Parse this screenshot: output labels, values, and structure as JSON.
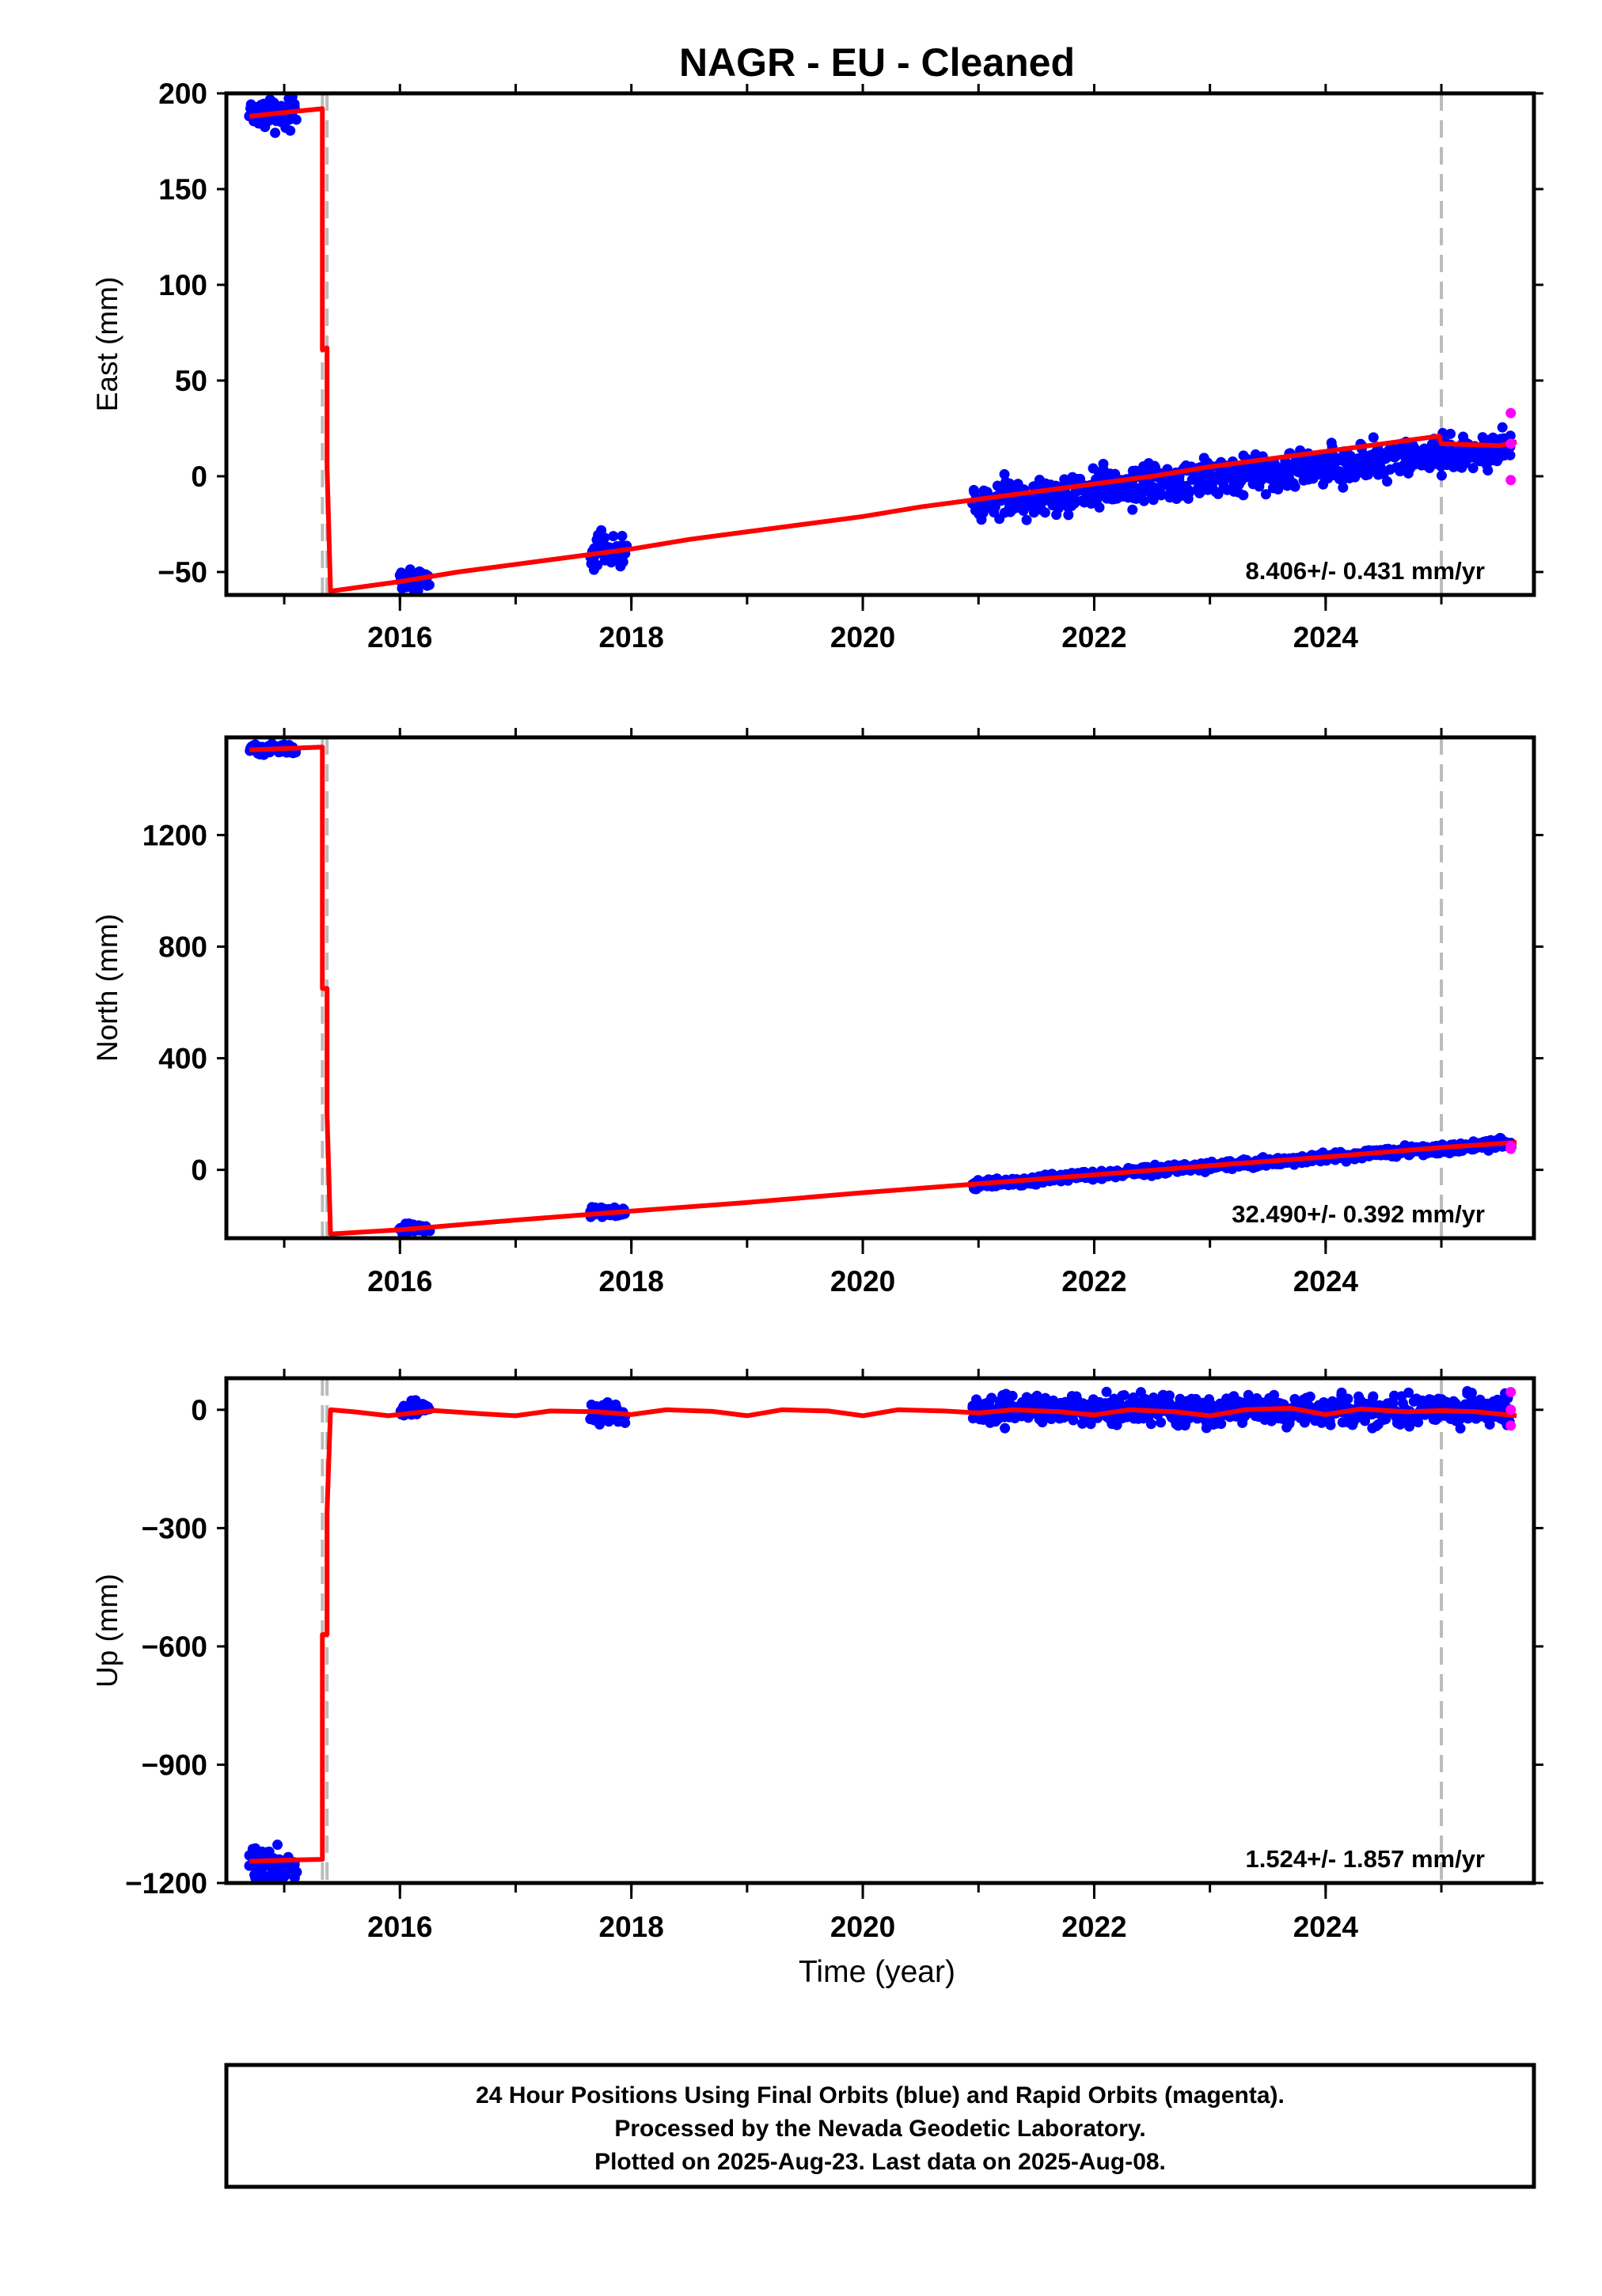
{
  "figure": {
    "title": "NAGR  - EU - Cleaned",
    "xlabel": "Time (year)",
    "footer_lines": [
      "24 Hour Positions Using Final Orbits (blue) and Rapid Orbits (magenta).",
      "Processed by the Nevada Geodetic Laboratory.",
      "Plotted on 2025-Aug-23. Last data on 2025-Aug-08."
    ]
  },
  "colors": {
    "final_orbits": "#0000ff",
    "rapid_orbits": "#ff00ff",
    "model": "#ff0000",
    "event_lines": "#bbbbbb"
  },
  "chart_data": [
    {
      "type": "scatter",
      "component": "east",
      "ylabel": "East (mm)",
      "xlim": [
        2014.5,
        2025.8
      ],
      "ylim": [
        -62,
        200
      ],
      "xticks": [
        2016,
        2018,
        2020,
        2022,
        2024
      ],
      "yticks": [
        -50,
        0,
        50,
        100,
        150,
        200
      ],
      "rate_label": "8.406+/- 0.431 mm/yr",
      "event_lines": [
        2015.33,
        2015.37,
        2025.0
      ],
      "model": [
        [
          2014.7,
          188
        ],
        [
          2015.0,
          190
        ],
        [
          2015.33,
          192
        ],
        [
          2015.33,
          66
        ],
        [
          2015.37,
          67
        ],
        [
          2015.37,
          5
        ],
        [
          2015.4,
          -60
        ],
        [
          2016.0,
          -55
        ],
        [
          2016.5,
          -50
        ],
        [
          2017.0,
          -46
        ],
        [
          2017.5,
          -42
        ],
        [
          2018.0,
          -38
        ],
        [
          2018.5,
          -33
        ],
        [
          2019.0,
          -29
        ],
        [
          2019.5,
          -25
        ],
        [
          2020.0,
          -21
        ],
        [
          2020.5,
          -16
        ],
        [
          2021.0,
          -12
        ],
        [
          2021.5,
          -8
        ],
        [
          2022.0,
          -4
        ],
        [
          2022.5,
          0
        ],
        [
          2023.0,
          5
        ],
        [
          2023.5,
          9
        ],
        [
          2024.0,
          13
        ],
        [
          2024.5,
          17
        ],
        [
          2024.98,
          21
        ],
        [
          2025.0,
          17
        ],
        [
          2025.5,
          16
        ],
        [
          2025.65,
          18
        ]
      ],
      "final_clusters": [
        {
          "x": [
            2014.7,
            2015.1
          ],
          "y_center": 190,
          "spread": 4
        },
        {
          "x": [
            2016.0,
            2016.25
          ],
          "y_center": -54,
          "spread": 3
        },
        {
          "x": [
            2017.65,
            2017.95
          ],
          "y_center": -39,
          "spread": 4
        },
        {
          "x": [
            2020.95,
            2025.6
          ],
          "y_start": -13,
          "y_end": 15,
          "spread": 5
        }
      ],
      "rapid_points": [
        [
          2025.6,
          33
        ],
        [
          2025.6,
          17
        ],
        [
          2025.6,
          -2
        ]
      ]
    },
    {
      "type": "scatter",
      "component": "north",
      "ylabel": "North (mm)",
      "xlim": [
        2014.5,
        2025.8
      ],
      "ylim": [
        -245,
        1550
      ],
      "xticks": [
        2016,
        2018,
        2020,
        2022,
        2024
      ],
      "yticks": [
        0,
        400,
        800,
        1200
      ],
      "rate_label": "32.490+/- 0.392 mm/yr",
      "event_lines": [
        2015.33,
        2015.37,
        2025.0
      ],
      "model": [
        [
          2014.7,
          1505
        ],
        [
          2015.0,
          1510
        ],
        [
          2015.33,
          1515
        ],
        [
          2015.33,
          650
        ],
        [
          2015.37,
          650
        ],
        [
          2015.37,
          200
        ],
        [
          2015.4,
          -230
        ],
        [
          2016.0,
          -215
        ],
        [
          2017.0,
          -180
        ],
        [
          2018.0,
          -148
        ],
        [
          2019.0,
          -117
        ],
        [
          2020.0,
          -82
        ],
        [
          2021.0,
          -50
        ],
        [
          2022.0,
          -18
        ],
        [
          2023.0,
          15
        ],
        [
          2024.0,
          46
        ],
        [
          2025.0,
          80
        ],
        [
          2025.65,
          98
        ]
      ],
      "final_clusters": [
        {
          "x": [
            2014.7,
            2015.1
          ],
          "y_center": 1508,
          "spread": 8
        },
        {
          "x": [
            2016.0,
            2016.25
          ],
          "y_center": -210,
          "spread": 8
        },
        {
          "x": [
            2017.65,
            2017.95
          ],
          "y_center": -150,
          "spread": 8
        },
        {
          "x": [
            2020.95,
            2025.6
          ],
          "y_start": -52,
          "y_end": 95,
          "spread": 8
        }
      ],
      "rapid_points": [
        [
          2025.6,
          85
        ],
        [
          2025.6,
          75
        ]
      ]
    },
    {
      "type": "scatter",
      "component": "up",
      "ylabel": "Up (mm)",
      "xlim": [
        2014.5,
        2025.8
      ],
      "ylim": [
        -1200,
        80
      ],
      "xticks": [
        2016,
        2018,
        2020,
        2022,
        2024
      ],
      "yticks": [
        -1200,
        -900,
        -600,
        -300,
        0
      ],
      "rate_label": "1.524+/- 1.857 mm/yr",
      "event_lines": [
        2015.33,
        2015.37,
        2025.0
      ],
      "model": [
        [
          2014.7,
          -1145
        ],
        [
          2015.0,
          -1142
        ],
        [
          2015.33,
          -1140
        ],
        [
          2015.33,
          -570
        ],
        [
          2015.37,
          -570
        ],
        [
          2015.37,
          -260
        ],
        [
          2015.4,
          0
        ],
        [
          2015.6,
          -5
        ],
        [
          2015.9,
          -15
        ],
        [
          2016.3,
          -2
        ],
        [
          2016.7,
          -10
        ],
        [
          2017.0,
          -15
        ],
        [
          2017.3,
          -3
        ],
        [
          2017.7,
          -5
        ],
        [
          2018.0,
          -12
        ],
        [
          2018.3,
          0
        ],
        [
          2018.7,
          -4
        ],
        [
          2019.0,
          -15
        ],
        [
          2019.3,
          0
        ],
        [
          2019.7,
          -3
        ],
        [
          2020.0,
          -15
        ],
        [
          2020.3,
          0
        ],
        [
          2020.7,
          -3
        ],
        [
          2021.0,
          -8
        ],
        [
          2021.3,
          0
        ],
        [
          2021.7,
          -5
        ],
        [
          2022.0,
          -13
        ],
        [
          2022.3,
          0
        ],
        [
          2022.7,
          -5
        ],
        [
          2023.0,
          -15
        ],
        [
          2023.3,
          0
        ],
        [
          2023.7,
          4
        ],
        [
          2024.0,
          -12
        ],
        [
          2024.3,
          2
        ],
        [
          2024.7,
          -5
        ],
        [
          2025.0,
          -2
        ],
        [
          2025.3,
          -5
        ],
        [
          2025.65,
          -15
        ]
      ],
      "final_clusters": [
        {
          "x": [
            2014.7,
            2015.1
          ],
          "y_center": -1155,
          "spread": 25
        },
        {
          "x": [
            2016.0,
            2016.25
          ],
          "y_center": 0,
          "spread": 10
        },
        {
          "x": [
            2017.65,
            2017.95
          ],
          "y_center": -8,
          "spread": 15
        },
        {
          "x": [
            2020.95,
            2025.6
          ],
          "y_start": 0,
          "y_end": 0,
          "spread": 18
        }
      ],
      "rapid_points": [
        [
          2025.6,
          45
        ],
        [
          2025.6,
          0
        ],
        [
          2025.6,
          -40
        ]
      ]
    }
  ]
}
